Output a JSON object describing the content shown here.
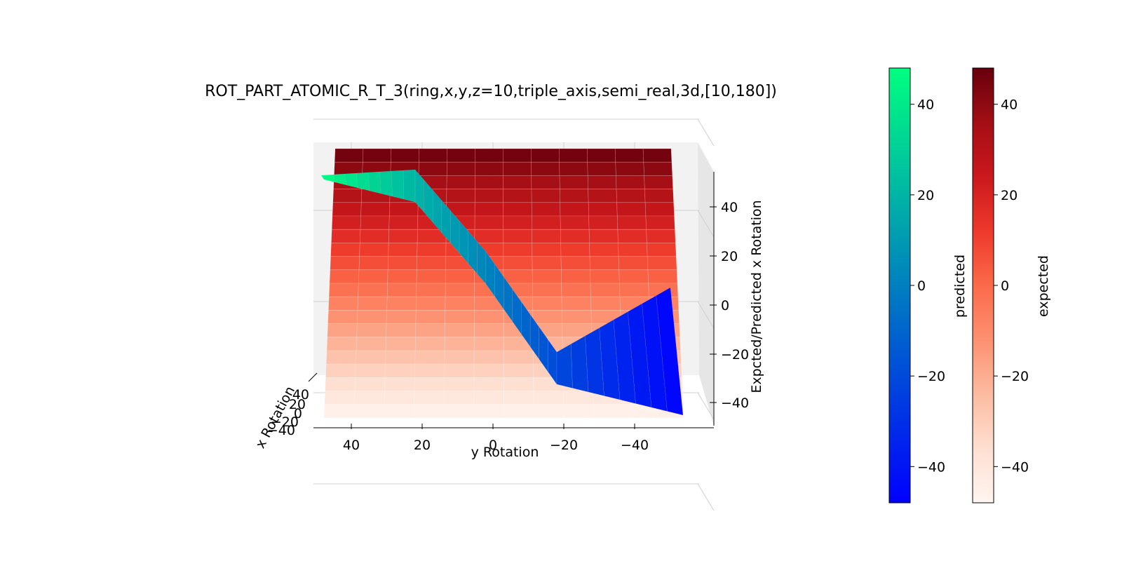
{
  "chart_data": {
    "type": "surface3d",
    "title": "ROT_PART_ATOMIC_R_T_3(ring,x,y,z=10,triple_axis,semi_real,3d,[10,180])",
    "xlabel": "x Rotation",
    "ylabel": "y Rotation",
    "zlabel": "Expcted/Predicted x Rotation",
    "y_ticks": [
      "40",
      "20",
      "0",
      "−20",
      "−40"
    ],
    "x_ticks": [
      "40",
      "20",
      "0",
      "−20",
      "−40"
    ],
    "z_ticks": [
      "40",
      "20",
      "0",
      "−20",
      "−40"
    ],
    "zlim": [
      -48,
      48
    ],
    "grid": true,
    "series": [
      {
        "name": "expected",
        "colormap": "Reds",
        "description_z": "z equals x Rotation",
        "z_range": [
          -48,
          48
        ]
      },
      {
        "name": "predicted",
        "colormap": "winter",
        "description_z": "z approximately equals y Rotation",
        "z_range": [
          -48,
          48
        ],
        "profile": [
          {
            "y": 48,
            "z": 47
          },
          {
            "y": 20,
            "z": 20
          },
          {
            "y": 0,
            "z": 2
          },
          {
            "y": -20,
            "z": -20
          },
          {
            "y": -48,
            "z": -47
          }
        ]
      }
    ],
    "colorbars": [
      {
        "label": "predicted",
        "colormap": "winter",
        "ticks": [
          "40",
          "20",
          "0",
          "−20",
          "−40"
        ],
        "range": [
          -48,
          48
        ],
        "colors": [
          "#0000ff",
          "#00ff80"
        ]
      },
      {
        "label": "expected",
        "colormap": "Reds",
        "ticks": [
          "40",
          "20",
          "0",
          "−20",
          "−40"
        ],
        "range": [
          -48,
          48
        ],
        "colors": [
          "#fff5f0",
          "#67000d"
        ]
      }
    ]
  }
}
